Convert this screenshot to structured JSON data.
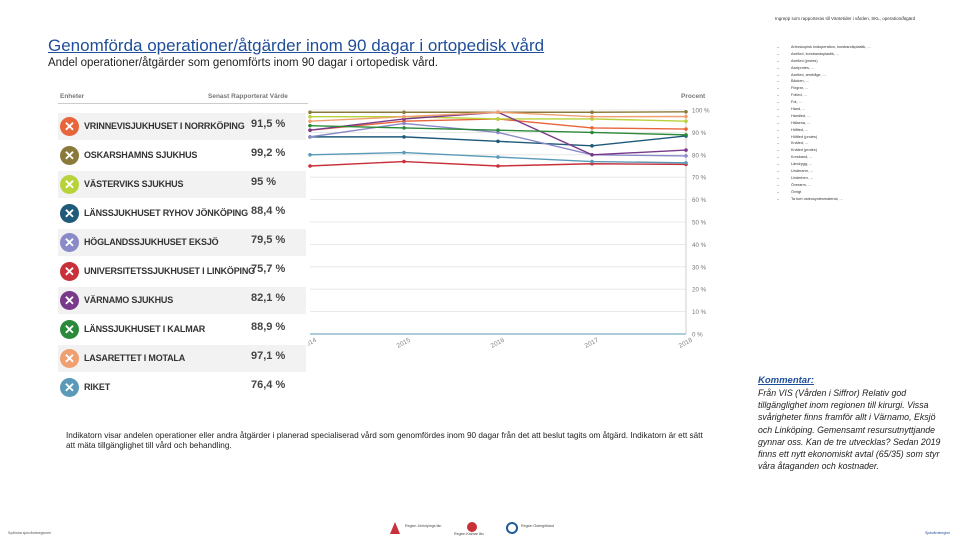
{
  "title": "Genomförda operationer/åtgärder inom 90 dagar i ortopedisk vård",
  "subtitle": "Andel operationer/åtgärder som genomförts inom 90 dagar i ortopedisk vård.",
  "panel": {
    "col_units": "Enheter",
    "col_latest": "Senast Rapporterat Värde",
    "col_percent": "Procent"
  },
  "colors": {
    "title": "#1f4e9a",
    "vrinnevi": "#e8643a",
    "oskarshamn": "#8a7a3a",
    "vastervik": "#b8d23a",
    "ryhov": "#1f5a7a",
    "hoglandet": "#8a8ac8",
    "universitet": "#c8303a",
    "varnamo": "#7a3a8a",
    "kalmar": "#2a8a3a",
    "motala": "#f0a070",
    "riket": "#5a9ab8"
  },
  "units": [
    {
      "name": "VRINNEVISJUKHUSET I NORRKÖPING",
      "value": "91,5 %",
      "color": "#e8643a"
    },
    {
      "name": "OSKARSHAMNS SJUKHUS",
      "value": "99,2 %",
      "color": "#8a7a3a"
    },
    {
      "name": "VÄSTERVIKS SJUKHUS",
      "value": "95 %",
      "color": "#b8d23a"
    },
    {
      "name": "LÄNSSJUKHUSET RYHOV JÖNKÖPING",
      "value": "88,4 %",
      "color": "#1f5a7a"
    },
    {
      "name": "HÖGLANDSSJUKHUSET EKSJÖ",
      "value": "79,5 %",
      "color": "#8a8ac8"
    },
    {
      "name": "UNIVERSITETSSJUKHUSET I LINKÖPING",
      "value": "75,7 %",
      "color": "#c8303a"
    },
    {
      "name": "VÄRNAMO SJUKHUS",
      "value": "82,1 %",
      "color": "#7a3a8a"
    },
    {
      "name": "LÄNSSJUKHUSET I KALMAR",
      "value": "88,9 %",
      "color": "#2a8a3a"
    },
    {
      "name": "LASARETTET I MOTALA",
      "value": "97,1 %",
      "color": "#f0a070"
    },
    {
      "name": "RIKET",
      "value": "76,4 %",
      "color": "#5a9ab8"
    }
  ],
  "chart_data": {
    "type": "line",
    "title": "",
    "ylabel": "Procent",
    "xlabel": "",
    "x": [
      "2014",
      "2015",
      "2016",
      "2017",
      "2018"
    ],
    "ylim": [
      0,
      100
    ],
    "yticks": [
      "100 %",
      "90 %",
      "80 %",
      "70 %",
      "60 %",
      "50 %",
      "40 %",
      "30 %",
      "20 %",
      "10 %",
      "0 %"
    ],
    "series": [
      {
        "name": "VRINNEVISJUKHUSET I NORRKÖPING",
        "color": "#e8643a",
        "values": [
          91,
          95,
          96,
          92,
          91.5
        ]
      },
      {
        "name": "OSKARSHAMNS SJUKHUS",
        "color": "#8a7a3a",
        "values": [
          99,
          99,
          99,
          99,
          99.2
        ]
      },
      {
        "name": "VÄSTERVIKS SJUKHUS",
        "color": "#b8d23a",
        "values": [
          97,
          97,
          96,
          96,
          95
        ]
      },
      {
        "name": "LÄNSSJUKHUSET RYHOV JÖNKÖPING",
        "color": "#1f5a7a",
        "values": [
          88,
          88,
          86,
          84,
          88.4
        ]
      },
      {
        "name": "HÖGLANDSSJUKHUSET EKSJÖ",
        "color": "#8a8ac8",
        "values": [
          88,
          94,
          90,
          80,
          79.5
        ]
      },
      {
        "name": "UNIVERSITETSSJUKHUSET I LINKÖPING",
        "color": "#c8303a",
        "values": [
          75,
          77,
          75,
          76,
          75.7
        ]
      },
      {
        "name": "VÄRNAMO SJUKHUS",
        "color": "#7a3a8a",
        "values": [
          91,
          96,
          99,
          80,
          82.1
        ]
      },
      {
        "name": "LÄNSSJUKHUSET I KALMAR",
        "color": "#2a8a3a",
        "values": [
          93,
          92,
          91,
          90,
          88.9
        ]
      },
      {
        "name": "LASARETTET I MOTALA",
        "color": "#f0a070",
        "values": [
          95,
          97,
          99,
          97,
          97.1
        ]
      },
      {
        "name": "RIKET",
        "color": "#5a9ab8",
        "values": [
          80,
          81,
          79,
          77,
          76.4
        ]
      }
    ]
  },
  "indicator": "Indikatorn visar andelen operationer eller andra åtgärder i planerad specialiserad vård som genomfördes inom 90 dagar från det att beslut tagits om åtgärd. Indikatorn är ett sätt att mäta tillgänglighet till vård och behandling.",
  "right_list_head": "Ingrepp som rapporteras till Väntetider i vården, SKL, operation/åtgärd",
  "right_list": [
    "Artroskopisk knäoperation, korsbandsplastik, ...",
    "Axelled, korsbandsplastik, ...",
    "Axelled (protes)",
    "Axelprotes, ...",
    "Axelled, armbåge, ...",
    "Bäcken, ...",
    "Fingrar, ...",
    "Fotled, ...",
    "Fot, ...",
    "Hand, ...",
    "Handled, ...",
    "Hälsena, ...",
    "Höftled, ...",
    "Höftled (protes)",
    "Knäled, ...",
    "Knäled (protes)",
    "Korsband, ...",
    "Ländrygg, ...",
    "Underarm, ...",
    "Underben, ...",
    "Överarm, ...",
    "Övrigt",
    "Ta bort osteosyntesmaterial, ..."
  ],
  "comment_title": "Kommentar:",
  "comment": "Från VIS (Vården i Siffror) Relativ god tillgänglighet inom regionen till kirurgi. Vissa svårigheter finns framför allt i Värnamo, Eksjö och Linköping. Gemensamt resursutnyttjande gynnar oss. Kan de tre utvecklas? Sedan 2019 finns ett nytt ekonomiskt avtal (65/35) som styr våra åtaganden och kostnader.",
  "footer_left": "Sydöstra sjukvårdsregionen",
  "footer_right": "Sjukvårdsregion",
  "logos": [
    {
      "name": "Region Jönköpings län",
      "color": "#c8303a"
    },
    {
      "name": "Region Kalmar län",
      "color": "#c8303a"
    },
    {
      "name": "Region Östergötland",
      "color": "#1f5a9a"
    }
  ]
}
